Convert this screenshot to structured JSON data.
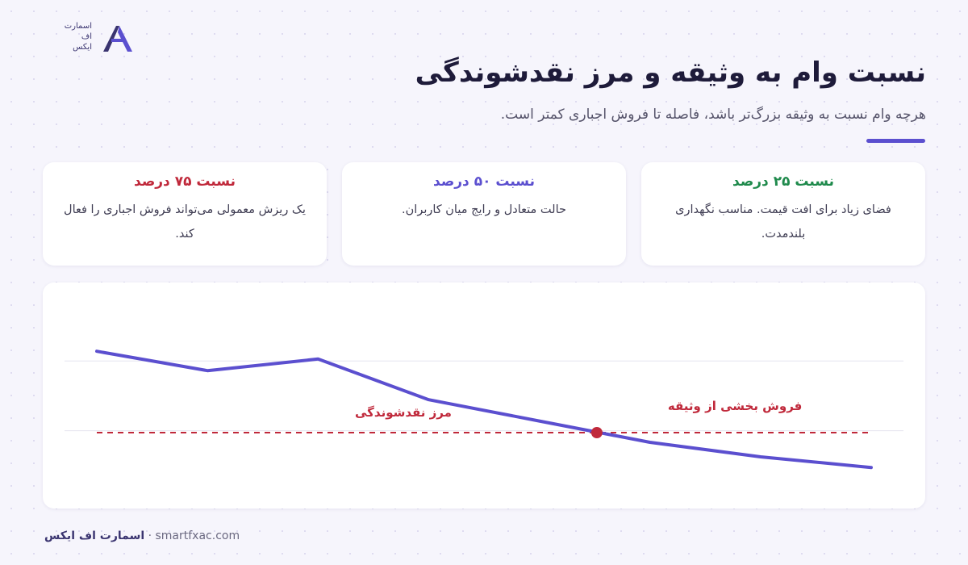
{
  "logo": {
    "lines": [
      "اسمارت",
      "اف",
      "ایکس"
    ]
  },
  "header": {
    "title": "نسبت وام به وثیقه و مرز نقدشوندگی",
    "subtitle": "هرچه وام نسبت به وثیقه بزرگ‌تر باشد، فاصله تا فروش اجباری کمتر است."
  },
  "cards": [
    {
      "title": "نسبت ۲۵ درصد",
      "text": "فضای زیاد برای افت قیمت. مناسب نگهداری بلندمدت.",
      "color": "#1f8a4c"
    },
    {
      "title": "نسبت ۵۰ درصد",
      "text": "حالت متعادل و رایج میان کاربران.",
      "color": "#5b4fcf"
    },
    {
      "title": "نسبت ۷۵ درصد",
      "text": "یک ریزش معمولی می‌تواند فروش اجباری را فعال کند.",
      "color": "#c0293b"
    }
  ],
  "chart_data": {
    "type": "line",
    "x": [
      0,
      1,
      2,
      3,
      4,
      5,
      6,
      7
    ],
    "series": [
      {
        "color": "#5b4fcf",
        "values": [
          77,
          67,
          73,
          52,
          41,
          30,
          22.5,
          17
        ]
      }
    ],
    "xlim": [
      0,
      7
    ],
    "ylim": [
      0,
      100
    ],
    "yticks": [
      36,
      72
    ],
    "grid": true,
    "threshold": {
      "value": 35,
      "label": "مرز نقدشوندگی",
      "color": "#c0293b"
    },
    "marker": {
      "x": 4.52,
      "y": 35,
      "label": "فروش بخشی از وثیقه",
      "color": "#c0293b"
    }
  },
  "footer": {
    "brand": "اسمارت اف ایکس",
    "separator": "·",
    "url": "smartfxac.com"
  }
}
